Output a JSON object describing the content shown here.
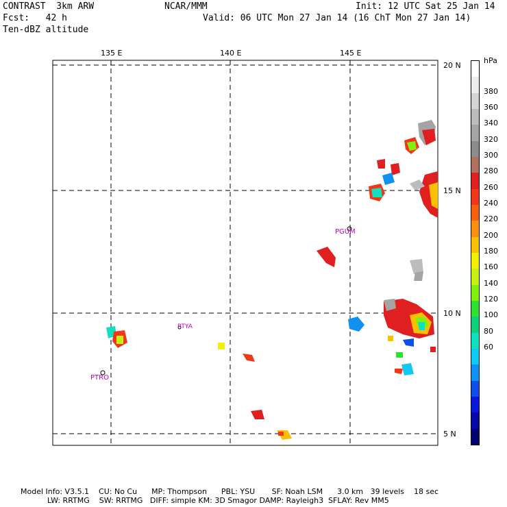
{
  "header": {
    "model": "CONTRAST  3km ARW",
    "center": "NCAR/MMM",
    "init": "Init: 12 UTC Sat 25 Jan 14",
    "fcst": "Fcst:   42 h",
    "valid": "Valid: 06 UTC Mon 27 Jan 14 (16 ChT Mon 27 Jan 14)",
    "field": "Ten-dBZ altitude"
  },
  "map": {
    "lon_labels": [
      "135 E",
      "140 E",
      "145 E"
    ],
    "lat_labels": [
      "20 N",
      "15 N",
      "10 N",
      "5 N"
    ],
    "stations": [
      "PGUM",
      "PTYA",
      "PTRO"
    ]
  },
  "colorbar": {
    "unit": "hPa",
    "labels": [
      "380",
      "360",
      "340",
      "320",
      "300",
      "280",
      "260",
      "240",
      "220",
      "200",
      "180",
      "160",
      "140",
      "120",
      "100",
      "80",
      "60"
    ],
    "colors": [
      "#ffffff",
      "#ececec",
      "#d4d4d4",
      "#bcbcbc",
      "#a4a4a4",
      "#8c8c8c",
      "#b07060",
      "#e02020",
      "#f03818",
      "#f86010",
      "#f89010",
      "#f8c000",
      "#f0f000",
      "#c8f010",
      "#80f010",
      "#30e030",
      "#10d080",
      "#10e0c0",
      "#10c8f0",
      "#1090f0",
      "#1050e8",
      "#0818d8",
      "#0808a8",
      "#000070"
    ]
  },
  "footer": {
    "line1": "Model Info: V3.5.1    CU: No Cu      MP: Thompson      PBL: YSU       SF: Noah LSM      3.0 km   39 levels    18 sec",
    "line2": "LW: RRTMG    SW: RRTMG   DIFF: simple KM: 3D Smagor DAMP: Rayleigh3  SFLAY: Rev MM5"
  }
}
